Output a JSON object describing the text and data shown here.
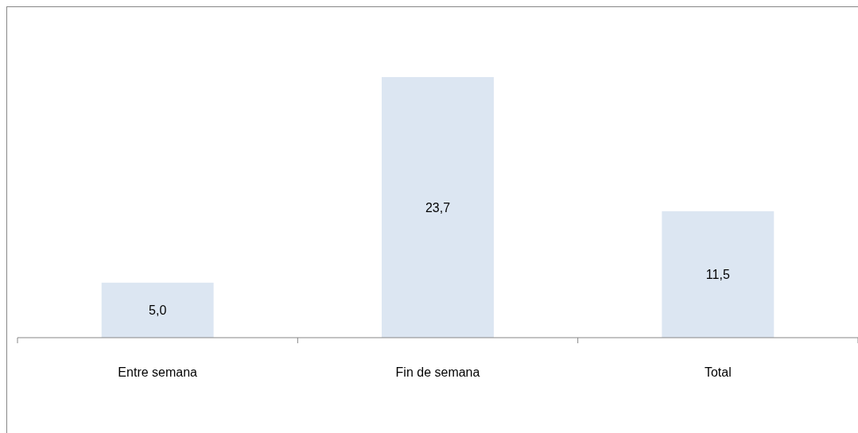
{
  "chart_data": {
    "type": "bar",
    "categories": [
      "Entre semana",
      "Fin de semana",
      "Total"
    ],
    "values": [
      5.0,
      23.7,
      11.5
    ],
    "value_labels": [
      "5,0",
      "23,7",
      "11,5"
    ],
    "color": "#dce6f2"
  }
}
